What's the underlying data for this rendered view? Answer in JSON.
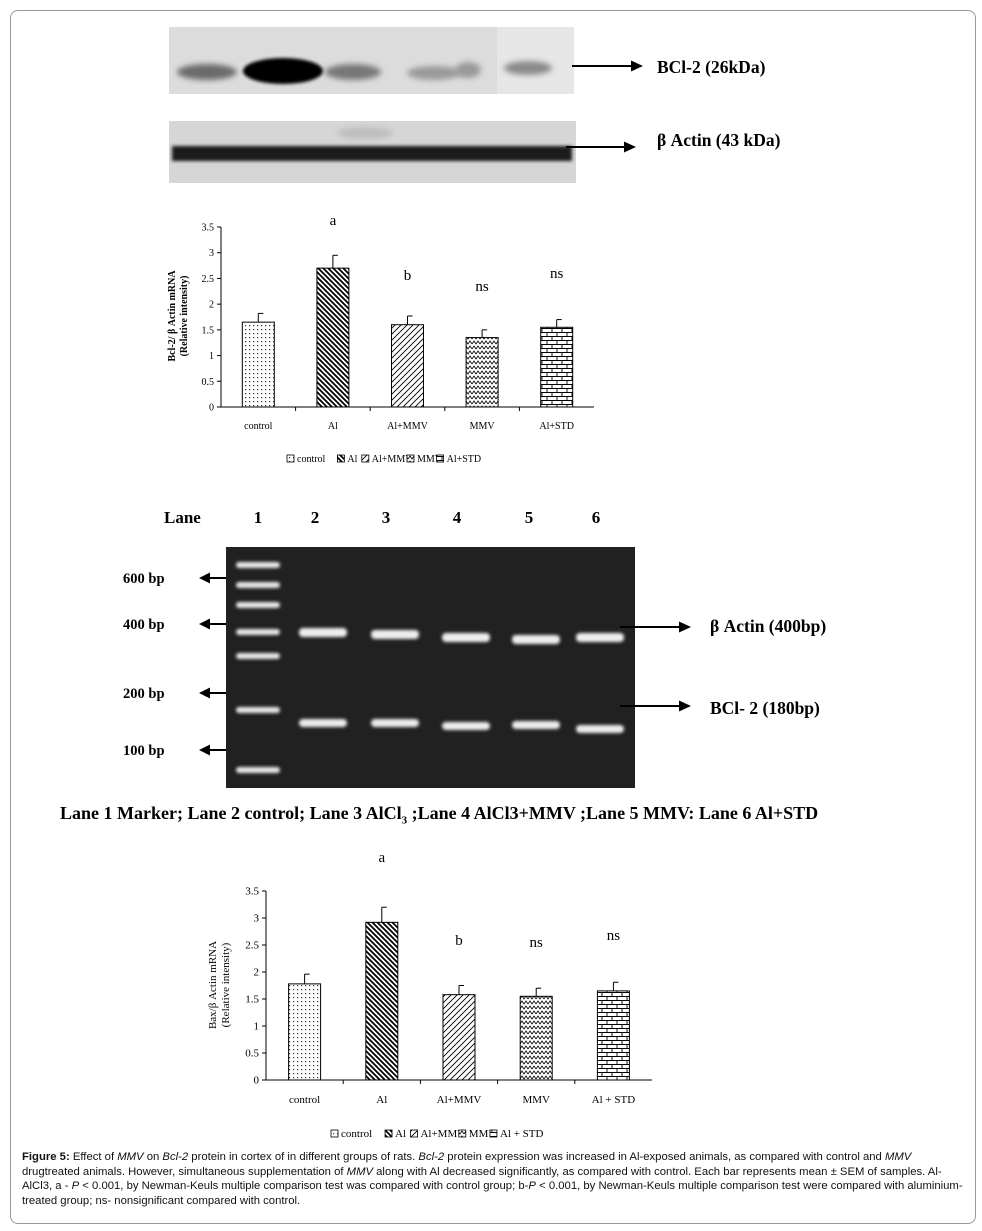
{
  "western": {
    "bcl2_label": "BCl-2 (26kDa)",
    "actin_label": "β Actin (43 kDa)"
  },
  "chart1": {
    "ylabel_line1": "Bcl-2/ β Actin mRNA",
    "ylabel_line2": "(Relative intensity)",
    "legend": [
      "control",
      "Al",
      "Al+MMV",
      "MMV",
      "Al+STD"
    ]
  },
  "gel": {
    "lane_title": "Lane",
    "lane_numbers": [
      "1",
      "2",
      "3",
      "4",
      "5",
      "6"
    ],
    "markers": [
      "600 bp",
      "400 bp",
      "200 bp",
      "100 bp"
    ],
    "actin_label": "β Actin (400bp)",
    "bcl2_label": "BCl- 2 (180bp)",
    "legend_line": "Lane 1 Marker; Lane 2 control; Lane 3 AlCl",
    "legend_sub": "3",
    "legend_rest": " ;Lane 4 AlCl3+MMV ;Lane 5 MMV: Lane 6 Al+STD"
  },
  "chart2": {
    "ylabel_line1": "Bax/β Actin mRNA",
    "ylabel_line2": "(Relative intensity)",
    "categories": [
      "control",
      "Al",
      "Al+MMV",
      "MMV",
      "Al + STD"
    ],
    "legend": [
      "control",
      "Al",
      "Al+MMV",
      "MMV",
      "Al + STD"
    ]
  },
  "chart_data": [
    {
      "type": "bar",
      "categories": [
        "control",
        "Al",
        "Al+MMV",
        "MMV",
        "Al+STD"
      ],
      "values": [
        1.65,
        2.7,
        1.6,
        1.35,
        1.55
      ],
      "errors": [
        0.17,
        0.25,
        0.17,
        0.15,
        0.15
      ],
      "annotations": [
        "",
        "a",
        "b",
        "ns",
        "ns"
      ],
      "ylim": [
        0,
        3.5
      ],
      "yticks": [
        "0",
        "0.5",
        "1",
        "1.5",
        "2",
        "2.5",
        "3",
        "3.5"
      ],
      "ylabel": "Bcl-2/ β Actin mRNA (Relative intensity)",
      "legend": "bottom"
    },
    {
      "type": "bar",
      "categories": [
        "control",
        "Al",
        "Al+MMV",
        "MMV",
        "Al + STD"
      ],
      "values": [
        1.78,
        2.92,
        1.58,
        1.55,
        1.65
      ],
      "errors": [
        0.18,
        0.28,
        0.17,
        0.15,
        0.16
      ],
      "annotations": [
        "",
        "a",
        "b",
        "ns",
        "ns"
      ],
      "ylim": [
        0,
        3.5
      ],
      "yticks": [
        "0",
        "0.5",
        "1",
        "1.5",
        "2",
        "2.5",
        "3",
        "3.5"
      ],
      "ylabel": "Bax/β Actin mRNA (Relative intensity)",
      "legend": "bottom"
    }
  ],
  "caption": {
    "fig_label": "Figure 5:",
    "p1": " Effect of ",
    "mmv1": "MMV",
    "p2": " on ",
    "bcl1": "Bcl-2",
    "p3": " protein in cortex of in different groups of rats. ",
    "bcl2": "Bcl-2",
    "p4": " protein expression was increased in Al-exposed animals, as compared with control and ",
    "mmv2": "MMV",
    "p5": " drugtreated animals. However, simultaneous supplementation of ",
    "mmv3": "MMV",
    "p6": " along with Al decreased significantly, as compared with control. Each bar represents mean ± SEM of samples. Al-AlCl3, a - ",
    "p_a": "P",
    "p7": " < 0.001, by Newman-Keuls multiple comparison test was compared with control group; b-",
    "p_b": "P",
    "p8": " < 0.001, by Newman-Keuls multiple comparison test were compared with aluminium-treated group; ns- nonsignificant compared with control."
  }
}
